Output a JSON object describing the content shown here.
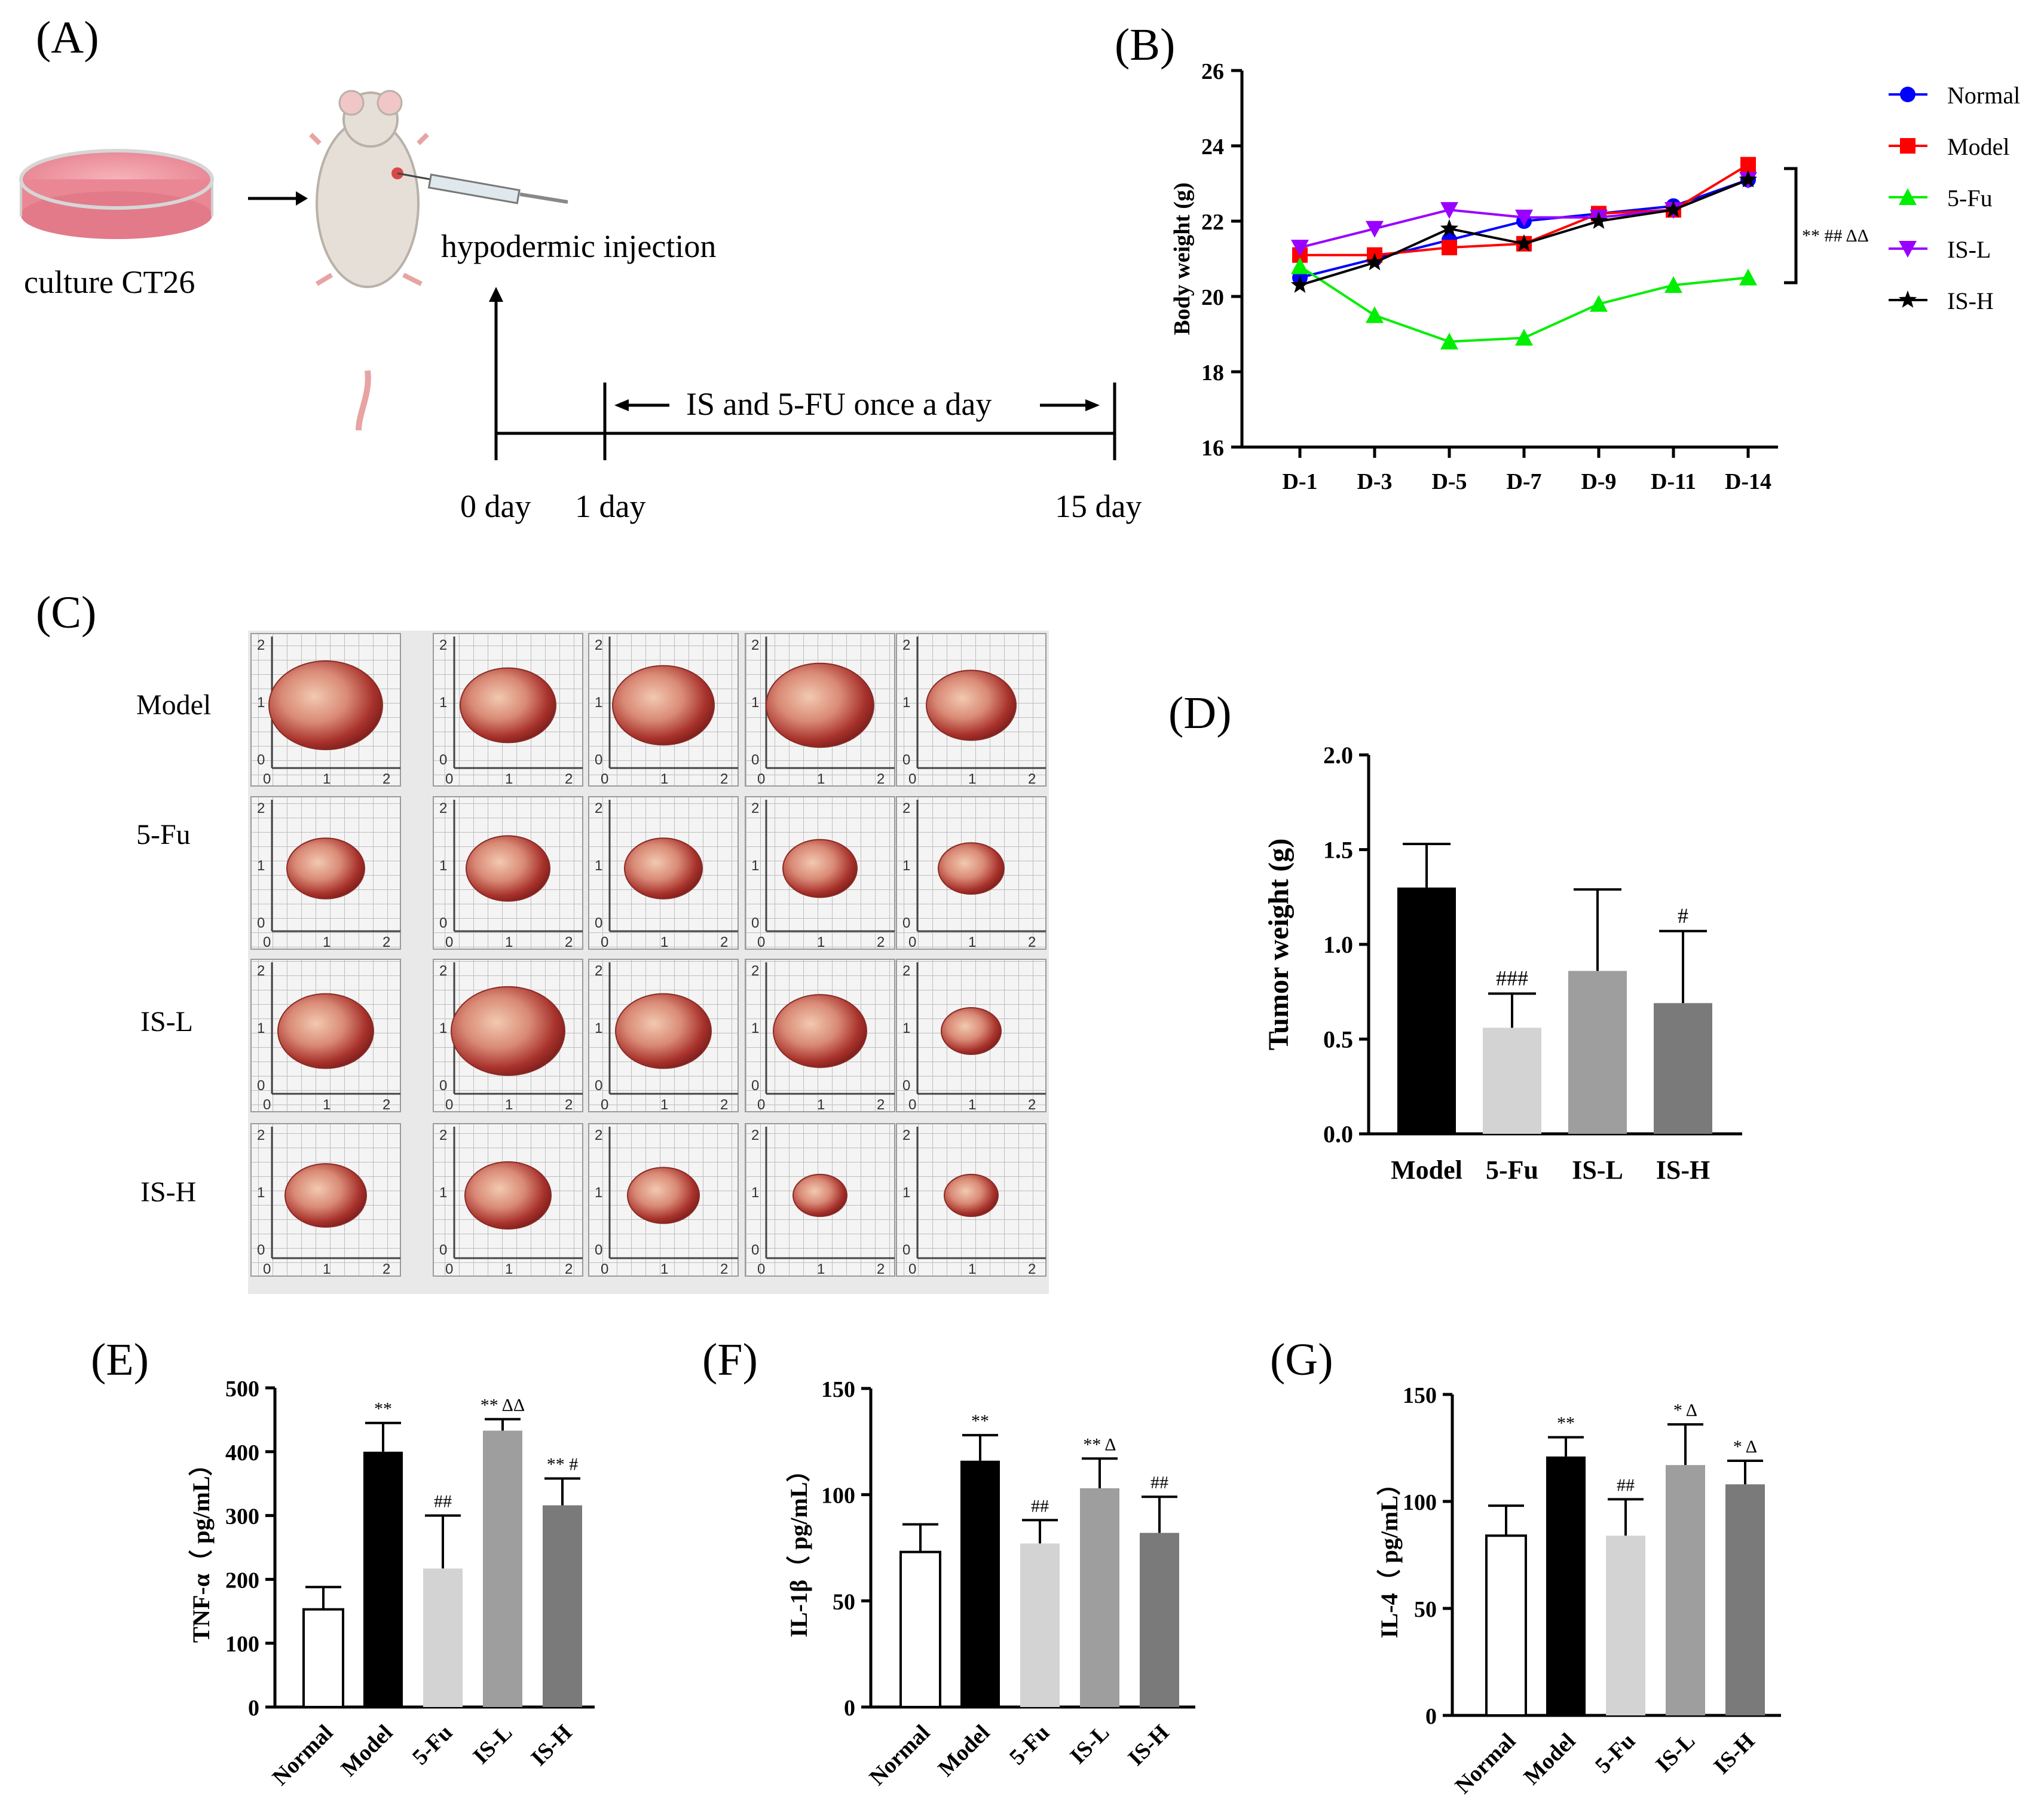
{
  "panel_labels": {
    "A": "(A)",
    "B": "(B)",
    "C": "(C)",
    "D": "(D)",
    "E": "(E)",
    "F": "(F)",
    "G": "(G)"
  },
  "panel_a": {
    "culture_label": "culture CT26",
    "injection_label": "hypodermic injection",
    "treatment_label": "IS and 5-FU once a day",
    "day0": "0 day",
    "day1": "1 day",
    "day15": "15 day"
  },
  "panel_c": {
    "row_labels": [
      "Model",
      "5-Fu",
      "IS-L",
      "IS-H"
    ],
    "ruler_ticks": [
      "0",
      "1",
      "2"
    ],
    "tumors_per_row": 5
  },
  "colors": {
    "normal": "#0000ff",
    "model": "#ff0000",
    "fu": "#00ee00",
    "isl": "#9900ff",
    "ish": "#000000"
  },
  "chart_data": [
    {
      "id": "B",
      "type": "line",
      "title": "",
      "xlabel": "",
      "ylabel": "Body weight (g)",
      "categories": [
        "D-1",
        "D-3",
        "D-5",
        "D-7",
        "D-9",
        "D-11",
        "D-14"
      ],
      "ylim": [
        16,
        26
      ],
      "yticks": [
        "16",
        "18",
        "20",
        "22",
        "24",
        "26"
      ],
      "series": [
        {
          "name": "Normal",
          "color": "#0000ff",
          "marker": "circle",
          "values": [
            20.5,
            21.0,
            21.5,
            22.0,
            22.2,
            22.4,
            23.1
          ]
        },
        {
          "name": "Model",
          "color": "#ff0000",
          "marker": "square",
          "values": [
            21.1,
            21.1,
            21.3,
            21.4,
            22.2,
            22.3,
            23.5
          ]
        },
        {
          "name": "5-Fu",
          "color": "#00ee00",
          "marker": "triangle-up",
          "values": [
            20.8,
            19.5,
            18.8,
            18.9,
            19.8,
            20.3,
            20.5
          ]
        },
        {
          "name": "IS-L",
          "color": "#9900ff",
          "marker": "triangle-down",
          "values": [
            21.3,
            21.8,
            22.3,
            22.1,
            22.1,
            22.3,
            23.1
          ]
        },
        {
          "name": "IS-H",
          "color": "#000000",
          "marker": "star",
          "values": [
            20.3,
            20.9,
            21.8,
            21.4,
            22.0,
            22.3,
            23.1
          ]
        }
      ],
      "annotation": "** ## ΔΔ"
    },
    {
      "id": "D",
      "type": "bar",
      "ylabel": "Tumor weight (g)",
      "categories": [
        "Model",
        "5-Fu",
        "IS-L",
        "IS-H"
      ],
      "values": [
        1.3,
        0.56,
        0.86,
        0.69
      ],
      "errors": [
        0.23,
        0.18,
        0.43,
        0.38
      ],
      "colors": [
        "#000000",
        "#d3d3d3",
        "#9e9e9e",
        "#7a7a7a"
      ],
      "annotations": [
        "",
        "###",
        "",
        "#"
      ],
      "ylim": [
        0,
        2.0
      ],
      "yticks": [
        "0.0",
        "0.5",
        "1.0",
        "1.5",
        "2.0"
      ]
    },
    {
      "id": "E",
      "type": "bar",
      "ylabel": "TNF-α（ pg/mL）",
      "categories": [
        "Normal",
        "Model",
        "5-Fu",
        "IS-L",
        "IS-H"
      ],
      "values": [
        153,
        400,
        217,
        433,
        316
      ],
      "errors": [
        35,
        45,
        83,
        18,
        42
      ],
      "colors": [
        "#ffffff",
        "#000000",
        "#d3d3d3",
        "#9e9e9e",
        "#7a7a7a"
      ],
      "annotations": [
        "",
        "**",
        "##",
        "** ΔΔ",
        "** #"
      ],
      "ylim": [
        0,
        500
      ],
      "yticks": [
        "0",
        "100",
        "200",
        "300",
        "400",
        "500"
      ]
    },
    {
      "id": "F",
      "type": "bar",
      "ylabel": "IL-1β（ pg/mL）",
      "categories": [
        "Normal",
        "Model",
        "5-Fu",
        "IS-L",
        "IS-H"
      ],
      "values": [
        73,
        116,
        77,
        103,
        82
      ],
      "errors": [
        13,
        12,
        11,
        14,
        17
      ],
      "colors": [
        "#ffffff",
        "#000000",
        "#d3d3d3",
        "#9e9e9e",
        "#7a7a7a"
      ],
      "annotations": [
        "",
        "**",
        "##",
        "** Δ",
        "##"
      ],
      "ylim": [
        0,
        150
      ],
      "yticks": [
        "0",
        "50",
        "100",
        "150"
      ]
    },
    {
      "id": "G",
      "type": "bar",
      "ylabel": "IL-4（ pg/mL）",
      "categories": [
        "Normal",
        "Model",
        "5-Fu",
        "IS-L",
        "IS-H"
      ],
      "values": [
        84,
        121,
        84,
        117,
        108
      ],
      "errors": [
        14,
        9,
        17,
        19,
        11
      ],
      "colors": [
        "#ffffff",
        "#000000",
        "#d3d3d3",
        "#9e9e9e",
        "#7a7a7a"
      ],
      "annotations": [
        "",
        "**",
        "##",
        "* Δ",
        "* Δ"
      ],
      "ylim": [
        0,
        150
      ],
      "yticks": [
        "0",
        "50",
        "100",
        "150"
      ]
    }
  ]
}
